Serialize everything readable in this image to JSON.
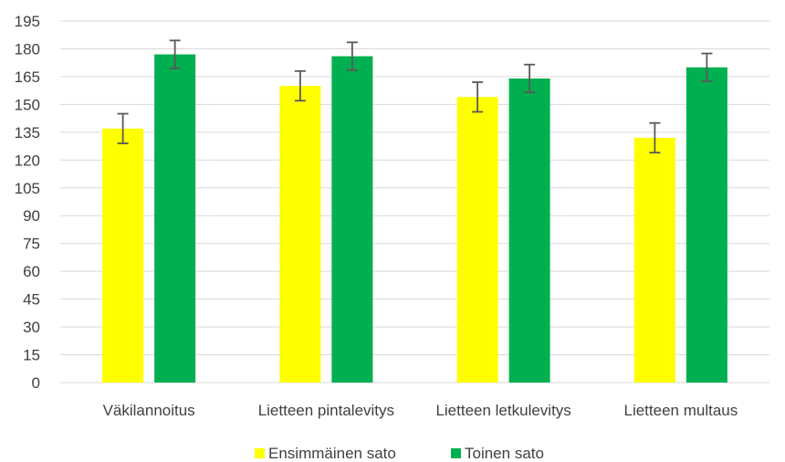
{
  "chart_data": {
    "type": "bar",
    "categories": [
      "Väkilannoitus",
      "Lietteen pintalevitys",
      "Lietteen letkulevitys",
      "Lietteen multaus"
    ],
    "series": [
      {
        "name": "Ensimmäinen sato",
        "color": "#ffff00",
        "values": [
          137,
          160,
          154,
          132
        ],
        "error": [
          8,
          8,
          8,
          8
        ]
      },
      {
        "name": "Toinen sato",
        "color": "#00b050",
        "values": [
          177,
          176,
          164,
          170
        ],
        "error": [
          7.5,
          7.5,
          7.5,
          7.5
        ]
      }
    ],
    "ylim": [
      0,
      195
    ],
    "yticks": [
      "0",
      "15",
      "30",
      "45",
      "60",
      "75",
      "90",
      "105",
      "120",
      "135",
      "150",
      "165",
      "180",
      "195"
    ],
    "grid": true,
    "legend_position": "bottom"
  }
}
